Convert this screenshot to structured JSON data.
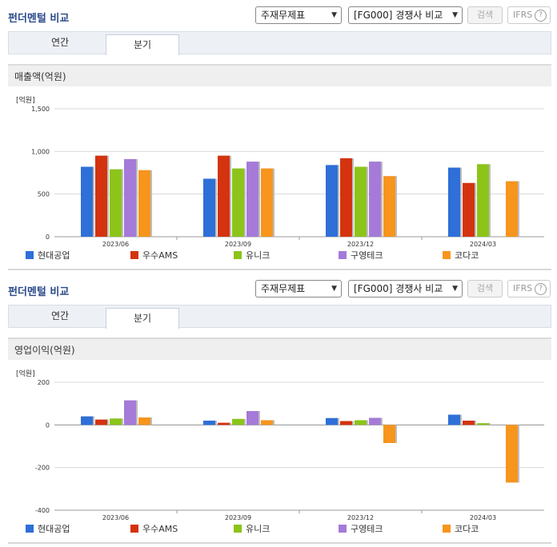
{
  "colors": {
    "series": [
      "#2e6fd8",
      "#d4330f",
      "#8cc41a",
      "#a57ad8",
      "#f7951d"
    ]
  },
  "sections": [
    {
      "title": "펀더멘털 비교",
      "select1": "주재무제표",
      "select2": "[FG000] 경쟁사 비교",
      "search_label": "검색",
      "ifrs_label": "IFRS",
      "ifrs_help": "?",
      "tabs": [
        "연간",
        "분기"
      ],
      "metric_label": "매출액(억원)",
      "unit_label": "[억원]"
    },
    {
      "title": "펀더멘털 비교",
      "select1": "주재무제표",
      "select2": "[FG000] 경쟁사 비교",
      "search_label": "검색",
      "ifrs_label": "IFRS",
      "ifrs_help": "?",
      "tabs": [
        "연간",
        "분기"
      ],
      "metric_label": "영업이익(억원)",
      "unit_label": "[억원]"
    }
  ],
  "chart_data": [
    {
      "type": "bar",
      "title": "매출액(억원)",
      "ylabel": "[억원]",
      "categories": [
        "2023/06",
        "2023/09",
        "2023/12",
        "2024/03"
      ],
      "ylim": [
        0,
        1500
      ],
      "yticks": [
        0,
        500,
        1000,
        1500
      ],
      "ytick_labels": [
        "0",
        "500",
        "1,000",
        "1,500"
      ],
      "grid": true,
      "legend": "bottom",
      "series": [
        {
          "name": "현대공업",
          "values": [
            820,
            680,
            840,
            810
          ]
        },
        {
          "name": "우수AMS",
          "values": [
            950,
            950,
            920,
            630
          ]
        },
        {
          "name": "유니크",
          "values": [
            790,
            800,
            820,
            850
          ]
        },
        {
          "name": "구영테크",
          "values": [
            910,
            880,
            880,
            null
          ]
        },
        {
          "name": "코다코",
          "values": [
            780,
            800,
            710,
            650
          ]
        }
      ]
    },
    {
      "type": "bar",
      "title": "영업이익(억원)",
      "ylabel": "[억원]",
      "categories": [
        "2023/06",
        "2023/09",
        "2023/12",
        "2024/03"
      ],
      "ylim": [
        -400,
        200
      ],
      "yticks": [
        -400,
        -200,
        0,
        200
      ],
      "ytick_labels": [
        "-400",
        "-200",
        "0",
        "200"
      ],
      "grid": true,
      "legend": "bottom",
      "series": [
        {
          "name": "현대공업",
          "values": [
            40,
            20,
            32,
            48
          ]
        },
        {
          "name": "우수AMS",
          "values": [
            25,
            10,
            18,
            20
          ]
        },
        {
          "name": "유니크",
          "values": [
            30,
            28,
            22,
            8
          ]
        },
        {
          "name": "구영테크",
          "values": [
            115,
            65,
            33,
            null
          ]
        },
        {
          "name": "코다코",
          "values": [
            35,
            22,
            -85,
            -270
          ]
        }
      ]
    }
  ]
}
